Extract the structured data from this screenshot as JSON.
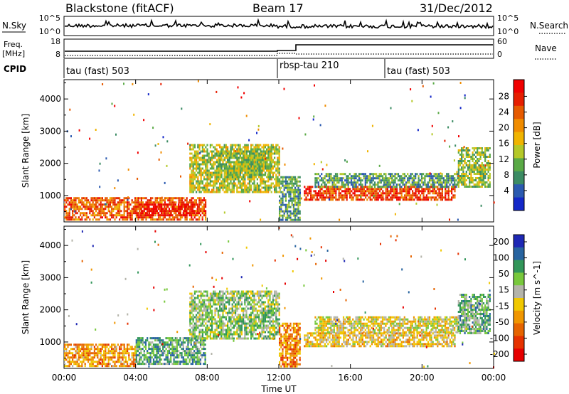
{
  "header": {
    "station": "Blackstone (fitACF)",
    "beam": "Beam 17",
    "date": "31/Dec/2012"
  },
  "top_panels": {
    "nsky_label": "N.Sky",
    "nsky_ticks": [
      "10^5",
      "10^0"
    ],
    "nsearch_label": "N.Search",
    "nsearch_ticks": [
      "10^5",
      "10^0"
    ],
    "freq_label_line1": "Freq.",
    "freq_label_line2": "[MHz]",
    "freq_ticks": [
      "18",
      "8"
    ],
    "nave_label": "Nave",
    "nave_ticks": [
      "60",
      "0"
    ],
    "cpid_label": "CPID",
    "cpid_segments": [
      {
        "label": "tau (fast) 503",
        "start": 0,
        "end": 12
      },
      {
        "label": "rbsp-tau 210",
        "start": 12,
        "end": 18
      },
      {
        "label": "tau (fast) 503",
        "start": 18,
        "end": 24
      }
    ]
  },
  "chart_data": [
    {
      "type": "heatmap",
      "title": "",
      "xlabel": "",
      "ylabel": "Slant Range [km]",
      "x_ticks": [
        "00:00",
        "04:00",
        "08:00",
        "12:00",
        "16:00",
        "20:00",
        "00:00"
      ],
      "x_range_hours": [
        0,
        24
      ],
      "y_ticks": [
        1000,
        2000,
        3000,
        4000
      ],
      "ylim": [
        180,
        4600
      ],
      "colorbar_label": "Power [dB]",
      "colorbar_ticks": [
        "4",
        "8",
        "12",
        "16",
        "20",
        "24",
        "28"
      ],
      "colorbar_colors": [
        "#1428c8",
        "#2b5ab0",
        "#3c8c64",
        "#5aaa46",
        "#b4c828",
        "#f0b400",
        "#f08c00",
        "#e65a00",
        "#e61e00",
        "#f00000"
      ],
      "echo_regions": [
        {
          "t0": 0.0,
          "t1": 7.9,
          "r0": 250,
          "r1": 950,
          "level": 0.75
        },
        {
          "t0": 4.0,
          "t1": 7.6,
          "r0": 400,
          "r1": 750,
          "level": 0.92
        },
        {
          "t0": 7.0,
          "t1": 12.0,
          "r0": 1100,
          "r1": 2600,
          "level": 0.45
        },
        {
          "t0": 8.5,
          "t1": 11.5,
          "r0": 1600,
          "r1": 2400,
          "level": 0.4
        },
        {
          "t0": 12.0,
          "t1": 13.2,
          "r0": 250,
          "r1": 1600,
          "level": 0.3
        },
        {
          "t0": 13.4,
          "t1": 21.8,
          "r0": 850,
          "r1": 1300,
          "level": 0.82
        },
        {
          "t0": 14.0,
          "t1": 22.0,
          "r0": 1300,
          "r1": 1700,
          "level": 0.3
        },
        {
          "t0": 22.0,
          "t1": 23.8,
          "r0": 1300,
          "r1": 2500,
          "level": 0.4
        }
      ]
    },
    {
      "type": "heatmap",
      "title": "",
      "xlabel": "Time UT",
      "ylabel": "Slant Range [km]",
      "x_ticks": [
        "00:00",
        "04:00",
        "08:00",
        "12:00",
        "16:00",
        "20:00",
        "00:00"
      ],
      "x_range_hours": [
        0,
        24
      ],
      "y_ticks": [
        1000,
        2000,
        3000,
        4000
      ],
      "ylim": [
        180,
        4600
      ],
      "colorbar_label": "Velocity [m s^-1]",
      "colorbar_ticks": [
        "200",
        "100",
        "50",
        "15",
        "-15",
        "-50",
        "-100",
        "-200"
      ],
      "colorbar_colors": [
        "#1e28b4",
        "#2864a0",
        "#32965a",
        "#78c83c",
        "#b4b4aa",
        "#f0c800",
        "#f09600",
        "#e66400",
        "#e63200",
        "#e60000"
      ],
      "echo_regions": [
        {
          "t0": 0.0,
          "t1": 4.0,
          "r0": 250,
          "r1": 950,
          "level": 0.35
        },
        {
          "t0": 4.0,
          "t1": 7.9,
          "r0": 300,
          "r1": 1150,
          "level": 0.72
        },
        {
          "t0": 7.0,
          "t1": 12.0,
          "r0": 1100,
          "r1": 2600,
          "level": 0.62
        },
        {
          "t0": 12.0,
          "t1": 13.2,
          "r0": 250,
          "r1": 1600,
          "level": 0.3
        },
        {
          "t0": 13.4,
          "t1": 21.8,
          "r0": 850,
          "r1": 1300,
          "level": 0.45
        },
        {
          "t0": 14.0,
          "t1": 22.0,
          "r0": 1300,
          "r1": 1800,
          "level": 0.5
        },
        {
          "t0": 22.0,
          "t1": 23.8,
          "r0": 1300,
          "r1": 2500,
          "level": 0.68
        }
      ]
    }
  ]
}
